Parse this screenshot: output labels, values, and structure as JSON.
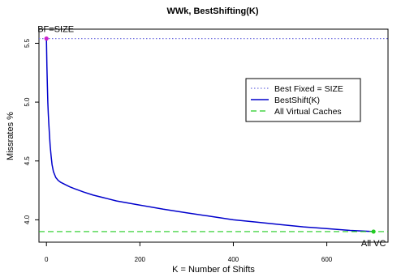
{
  "chart_data": {
    "type": "line",
    "title": "WWk, BestShifting(K)",
    "xlabel": "K = Number of Shifts",
    "ylabel": "Missrates %",
    "xlim": [
      -16,
      731
    ],
    "ylim": [
      3.81,
      5.62
    ],
    "x_ticks": [
      0,
      200,
      400,
      600
    ],
    "y_ticks": [
      4.0,
      4.5,
      5.0,
      5.5
    ],
    "x_tick_labels": [
      "0",
      "200",
      "400",
      "600"
    ],
    "y_tick_labels": [
      "4.0",
      "4.5",
      "5.0",
      "5.5"
    ],
    "grid": false,
    "legend_position": "right",
    "series": [
      {
        "name": "Best Fixed = SIZE",
        "style": "dotted",
        "color": "#7070e0",
        "hline": 5.54
      },
      {
        "name": "BestShift(K)",
        "style": "solid",
        "color": "#0000cc",
        "x": [
          0,
          1,
          2,
          3,
          4,
          5,
          6,
          8,
          10,
          12,
          15,
          20,
          25,
          30,
          40,
          50,
          60,
          80,
          100,
          130,
          150,
          200,
          250,
          300,
          350,
          400,
          450,
          500,
          550,
          600,
          650,
          700
        ],
        "y": [
          5.54,
          5.3,
          5.13,
          5.0,
          4.9,
          4.82,
          4.75,
          4.63,
          4.54,
          4.47,
          4.41,
          4.36,
          4.335,
          4.32,
          4.3,
          4.28,
          4.265,
          4.235,
          4.21,
          4.18,
          4.16,
          4.125,
          4.09,
          4.06,
          4.03,
          4.0,
          3.98,
          3.96,
          3.94,
          3.925,
          3.91,
          3.9
        ]
      },
      {
        "name": "All Virtual Caches",
        "style": "dashed",
        "color": "#22cc22",
        "hline": 3.9
      }
    ],
    "annotations": [
      {
        "text": "BF=SIZE",
        "x": 0,
        "y": 5.54,
        "marker_color": "#cc22cc"
      },
      {
        "text": "All VC",
        "x": 700,
        "y": 3.9,
        "marker_color": "#22cc22"
      }
    ]
  }
}
